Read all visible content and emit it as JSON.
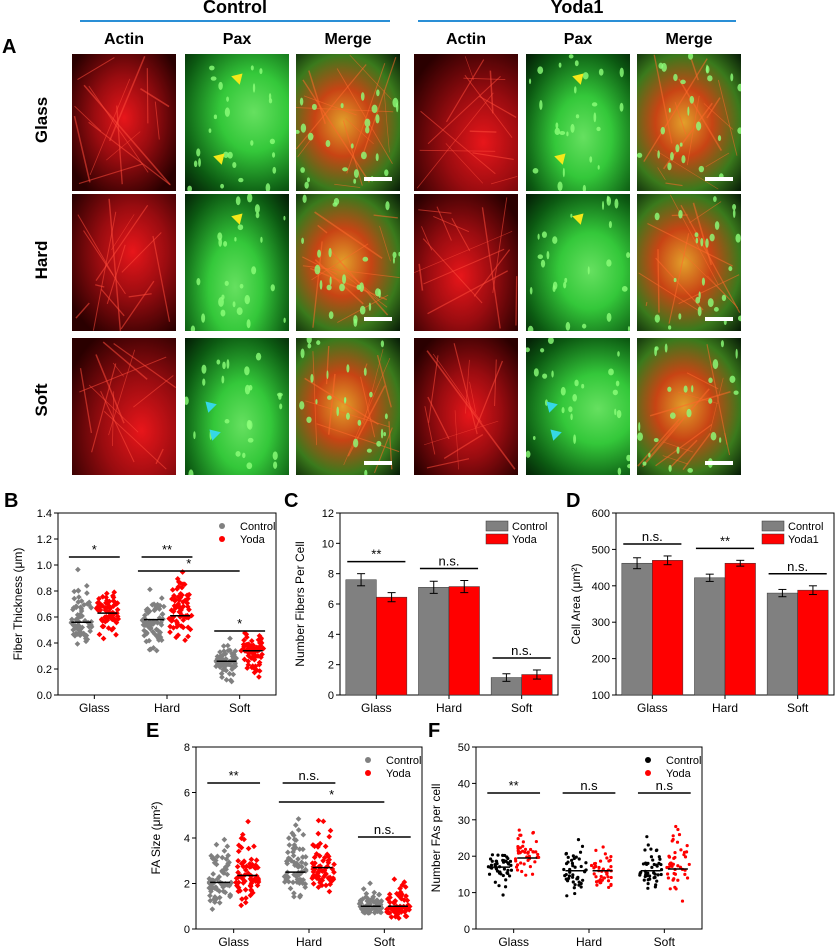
{
  "figure": {
    "letters": {
      "A": "A",
      "B": "B",
      "C": "C",
      "D": "D",
      "E": "E",
      "F": "F"
    },
    "groups": [
      "Control",
      "Yoda1"
    ],
    "columns": [
      "Actin",
      "Pax",
      "Merge"
    ],
    "rows": [
      "Glass",
      "Hard",
      "Soft"
    ],
    "colors": {
      "actin": "#e8161a",
      "pax": "#34c83a",
      "control_bar": "#808080",
      "yoda_bar": "#ff0000",
      "header_line": "#2a8fd6",
      "arrow_yellow": "#f4e81a",
      "arrow_cyan": "#35d8e6"
    }
  },
  "chart_data": [
    {
      "id": "B",
      "type": "scatter",
      "ylabel": "Fiber Thickness (μm)",
      "categories": [
        "Glass",
        "Hard",
        "Soft"
      ],
      "ylim": [
        0.0,
        1.4
      ],
      "yticks": [
        "0.0",
        "0.2",
        "0.4",
        "0.6",
        "0.8",
        "1.0",
        "1.2",
        "1.4"
      ],
      "legend": [
        "Control",
        "Yoda"
      ],
      "series": [
        {
          "name": "Control",
          "means": [
            0.56,
            0.58,
            0.26
          ],
          "spread": [
            [
              0.22,
              1.1
            ],
            [
              0.2,
              1.03
            ],
            [
              0.06,
              0.48
            ]
          ]
        },
        {
          "name": "Yoda",
          "means": [
            0.63,
            0.61,
            0.34
          ],
          "spread": [
            [
              0.3,
              0.97
            ],
            [
              0.26,
              1.21
            ],
            [
              0.05,
              0.55
            ]
          ]
        }
      ],
      "annotations": [
        {
          "text": "*",
          "pair": "Glass"
        },
        {
          "text": "**",
          "pair": "Hard"
        },
        {
          "text": "*",
          "pair": "Hard-Soft"
        },
        {
          "text": "*",
          "pair": "Soft"
        }
      ]
    },
    {
      "id": "C",
      "type": "bar",
      "ylabel": "Number Fibers Per Cell",
      "categories": [
        "Glass",
        "Hard",
        "Soft"
      ],
      "ylim": [
        0,
        12
      ],
      "yticks": [
        "0",
        "2",
        "4",
        "6",
        "8",
        "10",
        "12"
      ],
      "legend": [
        "Control",
        "Yoda"
      ],
      "series": [
        {
          "name": "Control",
          "values": [
            7.6,
            7.1,
            1.15
          ],
          "err": [
            0.4,
            0.4,
            0.25
          ]
        },
        {
          "name": "Yoda",
          "values": [
            6.45,
            7.15,
            1.35
          ],
          "err": [
            0.3,
            0.4,
            0.3
          ]
        }
      ],
      "annotations": [
        "**",
        "n.s.",
        "n.s."
      ]
    },
    {
      "id": "D",
      "type": "bar",
      "ylabel": "Cell Area (μm²)",
      "categories": [
        "Glass",
        "Hard",
        "Soft"
      ],
      "ylim": [
        100,
        600
      ],
      "yticks": [
        "100",
        "200",
        "300",
        "400",
        "500",
        "600"
      ],
      "legend": [
        "Control",
        "Yoda1"
      ],
      "series": [
        {
          "name": "Control",
          "values": [
            462,
            422,
            380
          ],
          "err": [
            15,
            10,
            10
          ]
        },
        {
          "name": "Yoda1",
          "values": [
            470,
            462,
            388
          ],
          "err": [
            12,
            8,
            12
          ]
        }
      ],
      "annotations": [
        "n.s.",
        "**",
        "n.s."
      ]
    },
    {
      "id": "E",
      "type": "scatter",
      "ylabel": "FA Size (μm²)",
      "categories": [
        "Glass",
        "Hard",
        "Soft"
      ],
      "ylim": [
        0,
        8
      ],
      "yticks": [
        "0",
        "2",
        "4",
        "6",
        "8"
      ],
      "legend": [
        "Control",
        "Yoda"
      ],
      "series": [
        {
          "name": "Control",
          "means": [
            2.05,
            2.5,
            1.0
          ],
          "spread": [
            [
              0.5,
              5.6
            ],
            [
              0.6,
              6.1
            ],
            [
              0.2,
              2.3
            ]
          ]
        },
        {
          "name": "Yoda",
          "means": [
            2.35,
            2.7,
            1.0
          ],
          "spread": [
            [
              0.4,
              5.9
            ],
            [
              0.6,
              5.9
            ],
            [
              0.2,
              3.2
            ]
          ]
        }
      ],
      "annotations": [
        {
          "text": "**",
          "pair": "Glass"
        },
        {
          "text": "n.s.",
          "pair": "Hard"
        },
        {
          "text": "*",
          "pair": "Hard-Soft"
        },
        {
          "text": "n.s.",
          "pair": "Soft"
        }
      ]
    },
    {
      "id": "F",
      "type": "scatter",
      "ylabel": "Number FAs per cell",
      "categories": [
        "Glass",
        "Hard",
        "Soft"
      ],
      "ylim": [
        0,
        50
      ],
      "yticks": [
        "0",
        "10",
        "20",
        "30",
        "40",
        "50"
      ],
      "legend": [
        "Control",
        "Yoda"
      ],
      "series": [
        {
          "name": "Control",
          "means": [
            17,
            16,
            16
          ],
          "spread": [
            [
              6,
              26
            ],
            [
              6,
              33
            ],
            [
              6,
              29
            ]
          ]
        },
        {
          "name": "Yoda",
          "means": [
            19.5,
            16,
            16.5
          ],
          "spread": [
            [
              8,
              32
            ],
            [
              6,
              27
            ],
            [
              6,
              35
            ]
          ]
        }
      ],
      "annotations": [
        "**",
        "n.s",
        "n.s"
      ]
    }
  ]
}
